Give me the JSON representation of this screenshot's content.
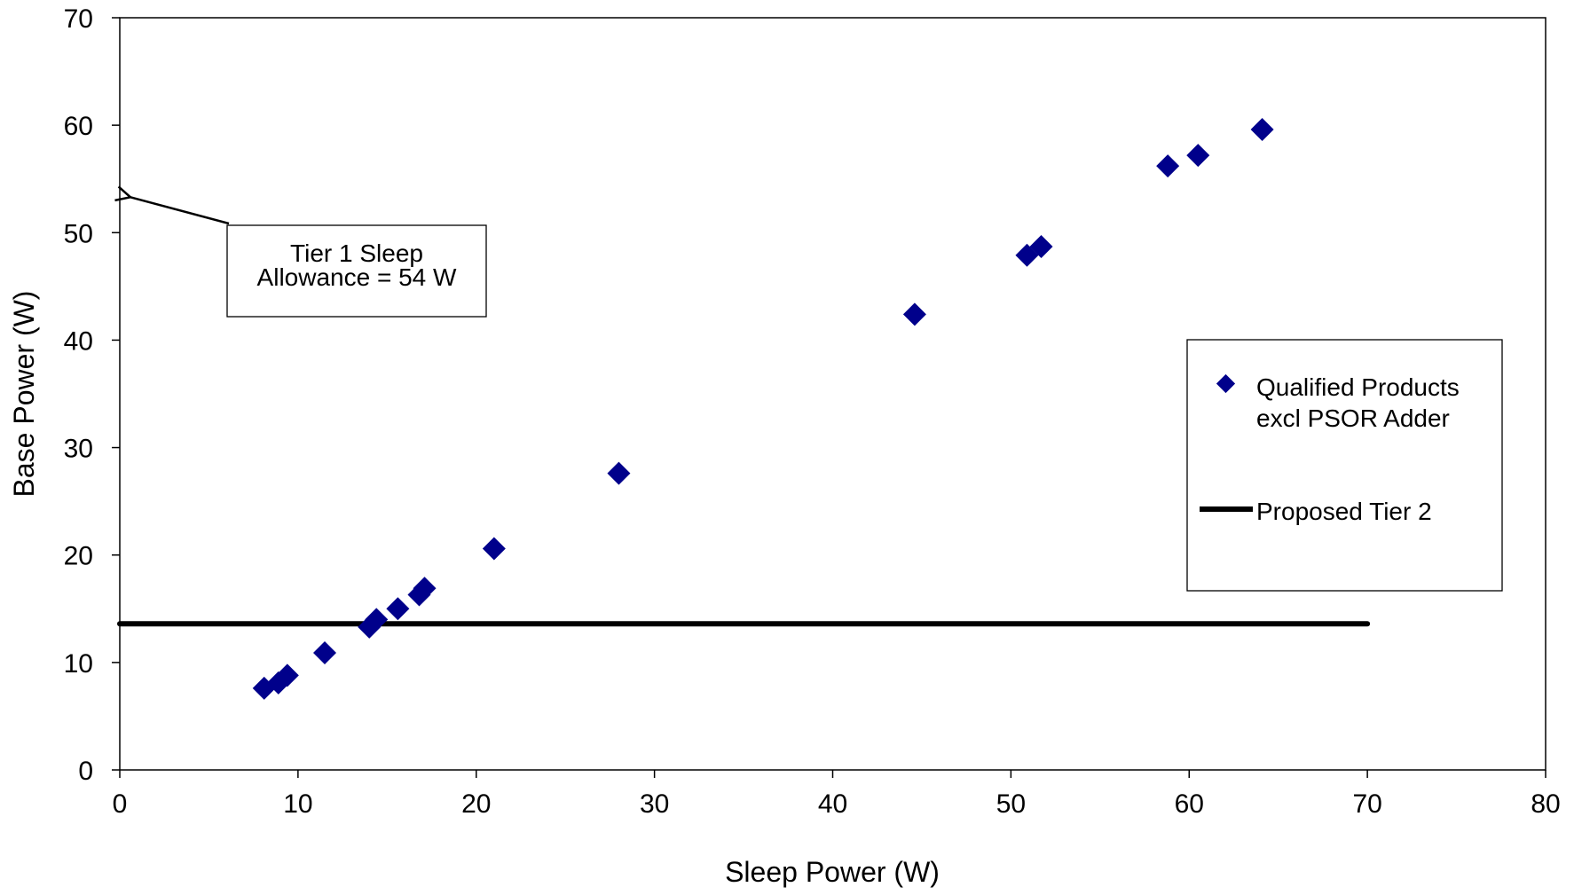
{
  "chart_data": {
    "type": "scatter",
    "title": "",
    "xlabel": "Sleep Power (W)",
    "ylabel": "Base Power (W)",
    "xlim": [
      0,
      80
    ],
    "ylim": [
      0,
      70
    ],
    "x_ticks": [
      0,
      10,
      20,
      30,
      40,
      50,
      60,
      70,
      80
    ],
    "y_ticks": [
      0,
      10,
      20,
      30,
      40,
      50,
      60,
      70
    ],
    "grid": false,
    "legend_position": "right",
    "series": [
      {
        "name": "Qualified Products excl PSOR Adder",
        "legend_lines": [
          "Qualified Products",
          "excl PSOR Adder"
        ],
        "type": "scatter",
        "marker": "diamond",
        "color": "#00008B",
        "points": [
          {
            "x": 8.1,
            "y": 7.6
          },
          {
            "x": 8.9,
            "y": 8.1
          },
          {
            "x": 9.4,
            "y": 8.8
          },
          {
            "x": 11.5,
            "y": 10.9
          },
          {
            "x": 14.0,
            "y": 13.3
          },
          {
            "x": 14.4,
            "y": 14.0
          },
          {
            "x": 15.6,
            "y": 15.0
          },
          {
            "x": 16.8,
            "y": 16.3
          },
          {
            "x": 17.1,
            "y": 16.9
          },
          {
            "x": 21.0,
            "y": 20.6
          },
          {
            "x": 28.0,
            "y": 27.6
          },
          {
            "x": 44.6,
            "y": 42.4
          },
          {
            "x": 50.9,
            "y": 47.9
          },
          {
            "x": 51.7,
            "y": 48.7
          },
          {
            "x": 58.8,
            "y": 56.2
          },
          {
            "x": 60.5,
            "y": 57.2
          },
          {
            "x": 64.1,
            "y": 59.6
          }
        ]
      },
      {
        "name": "Proposed Tier 2",
        "type": "line",
        "color": "#000000",
        "points": [
          {
            "x": 0,
            "y": 13.6
          },
          {
            "x": 70,
            "y": 13.6
          }
        ]
      }
    ],
    "annotation": {
      "lines": [
        "Tier 1 Sleep",
        "Allowance = 54 W"
      ],
      "arrow_target": {
        "x": 0,
        "y": 53.3
      }
    }
  }
}
